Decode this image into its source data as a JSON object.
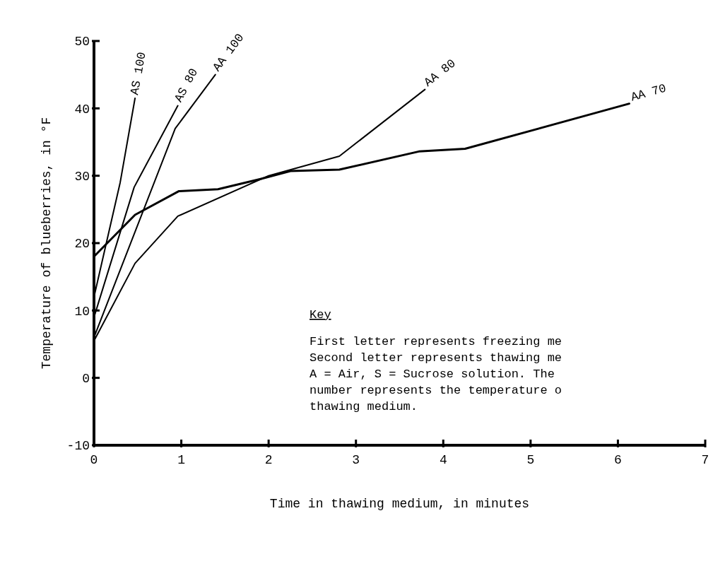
{
  "chart_data": {
    "type": "line",
    "xlabel": "Time in thawing medium, in minutes",
    "ylabel": "Temperature of blueberries, in °F",
    "xlim": [
      0,
      7
    ],
    "xticks": [
      0,
      1,
      2,
      3,
      4,
      5,
      6,
      7
    ],
    "ylim": [
      -10,
      50
    ],
    "yticks": [
      -10,
      0,
      10,
      20,
      30,
      40,
      50
    ],
    "grid": false,
    "marker": "none",
    "line_style": "solid",
    "series": [
      {
        "name": "AS 100",
        "color": "#000000",
        "x": [
          0,
          0.3,
          0.47
        ],
        "values": [
          12,
          29,
          41.5
        ]
      },
      {
        "name": "AS 80",
        "color": "#000000",
        "x": [
          0,
          0.46,
          0.96
        ],
        "values": [
          9,
          28.3,
          40.4
        ]
      },
      {
        "name": "AA 100",
        "color": "#000000",
        "x": [
          0,
          0.93,
          1.39
        ],
        "values": [
          6,
          37,
          45
        ]
      },
      {
        "name": "AA 80",
        "color": "#000000",
        "x": [
          0,
          0.47,
          0.96,
          2,
          2.81,
          3.79
        ],
        "values": [
          5.5,
          17,
          24,
          30,
          32.9,
          42.8
        ]
      },
      {
        "name": "AA 70",
        "color": "#000000",
        "x": [
          0,
          0.47,
          0.97,
          1.42,
          1.9,
          2.25,
          2.81,
          3.72,
          4.25,
          6.13
        ],
        "values": [
          18,
          24.2,
          27.7,
          28,
          29.5,
          30.7,
          30.9,
          33.6,
          34,
          40.7
        ]
      }
    ],
    "annotations": [
      "Key",
      "First letter represents freezing me",
      "Second letter represents thawing me",
      "A = Air, S = Sucrose solution.  The",
      "number represents the temperature o",
      "thawing medium."
    ]
  }
}
